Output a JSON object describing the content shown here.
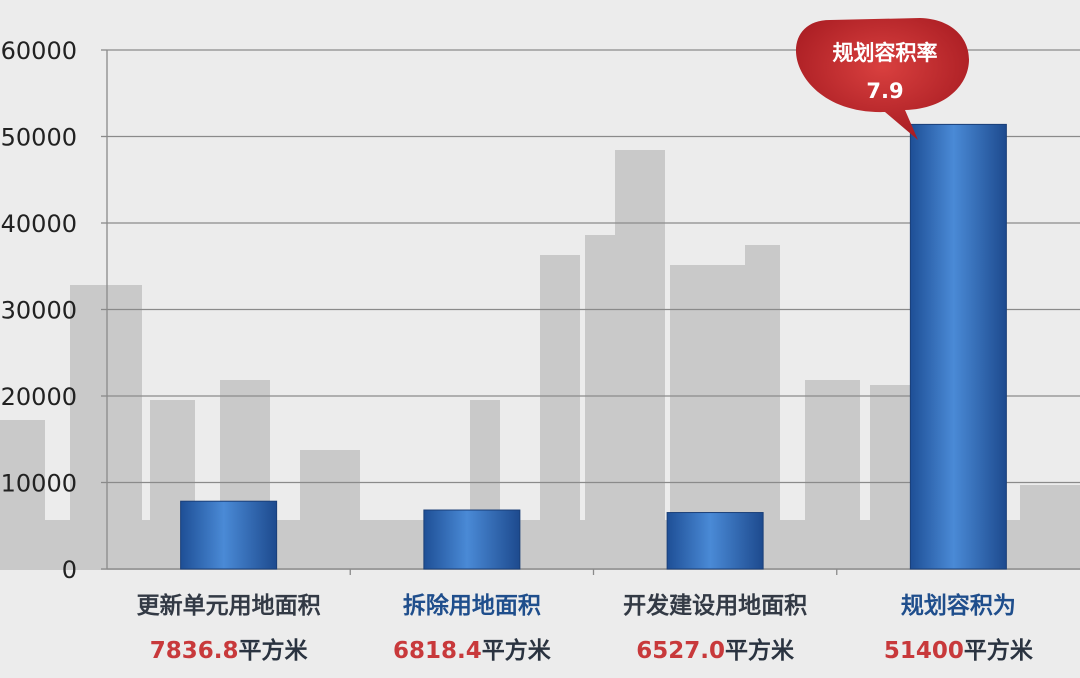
{
  "chart_data": {
    "type": "bar",
    "categories": [
      "更新单元用地面积",
      "拆除用地面积",
      "开发建设用地面积",
      "规划容积为"
    ],
    "category_colors": [
      "#333a45",
      "#1f4e8c",
      "#333a45",
      "#1f4e8c"
    ],
    "value_labels": [
      "7836.8",
      "6818.4",
      "6527.0",
      "51400"
    ],
    "unit": "平方米",
    "values": [
      7836.8,
      6818.4,
      6527.0,
      51400
    ],
    "ylim": [
      0,
      60000
    ],
    "yticks": [
      "0",
      "10000",
      "20000",
      "30000",
      "40000",
      "50000",
      "60000"
    ],
    "grid": true,
    "bar_color": "#2f6bbd",
    "value_color": "#c8393b",
    "callout": {
      "title": "规划容积率",
      "value": "7.9",
      "color": "#c0272d"
    }
  }
}
